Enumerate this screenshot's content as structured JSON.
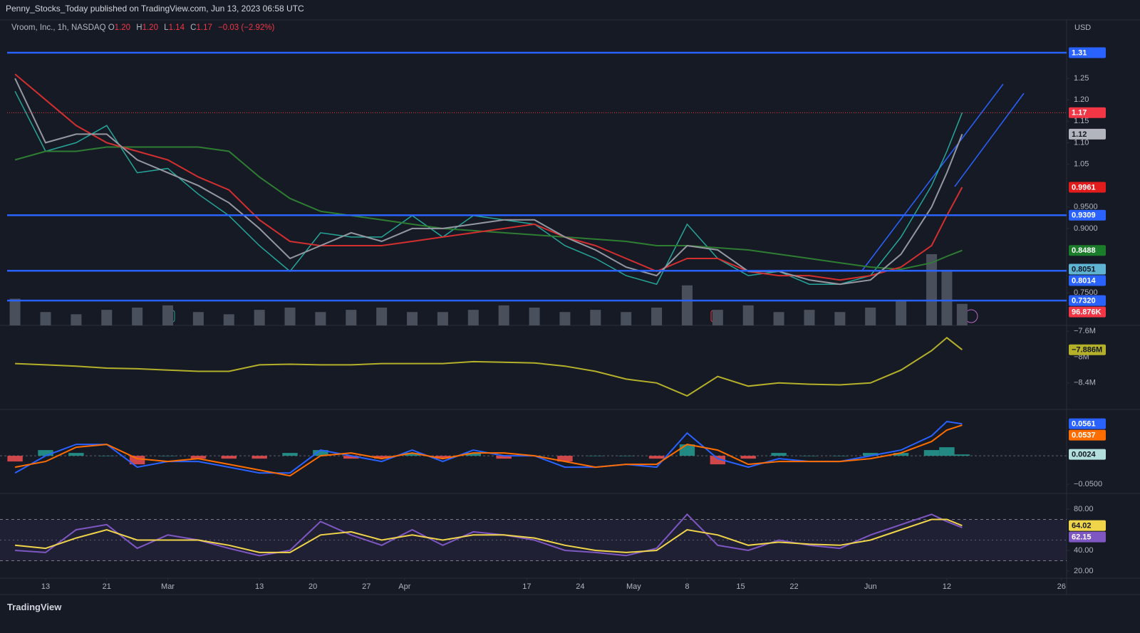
{
  "header": {
    "published": "Penny_Stocks_Today published on TradingView.com, Jun 13, 2023 06:58 UTC"
  },
  "footer": {
    "brand": "TradingView"
  },
  "chart_data": [
    {
      "type": "line",
      "title": "Vroom, Inc., 1h, NASDAQ",
      "ohlc": [
        "O",
        "1.20",
        "H",
        "1.20",
        "L",
        "1.14",
        "C",
        "1.17",
        "−0.03 (−2.92%)"
      ],
      "currency": "USD",
      "x": [
        40,
        44,
        48,
        52,
        56,
        60,
        64,
        68,
        72,
        76,
        80,
        84,
        88,
        92,
        96,
        100,
        104,
        108,
        112,
        116,
        120,
        124,
        128,
        132,
        136,
        140,
        144,
        148,
        152,
        156,
        160,
        162,
        164
      ],
      "xlim": [
        38.03,
        177.68
      ],
      "ylim": [
        0.674,
        1.383
      ],
      "yticks": [
        1.25,
        {
          "value": 1.2,
          "label": "1.20"
        },
        1.15,
        {
          "value": 1.1,
          "label": "1.10"
        },
        1.05,
        {
          "value": 0.95,
          "label": "0.9500"
        },
        {
          "value": 0.9,
          "label": "0.9000"
        },
        {
          "value": 0.75,
          "label": "0.7500"
        }
      ],
      "series": [
        {
          "color": "#26a69a",
          "values": [
            1.22,
            1.08,
            1.1,
            1.14,
            1.03,
            1.04,
            0.98,
            0.93,
            0.86,
            0.8,
            0.89,
            0.88,
            0.88,
            0.93,
            0.88,
            0.93,
            0.92,
            0.91,
            0.86,
            0.83,
            0.79,
            0.77,
            0.91,
            0.83,
            0.79,
            0.8,
            0.77,
            0.77,
            0.79,
            0.88,
            1.0,
            1.08,
            1.17
          ]
        },
        {
          "color": "#2e7d32",
          "values": [
            1.06,
            1.08,
            1.08,
            1.09,
            1.09,
            1.09,
            1.09,
            1.08,
            1.02,
            0.97,
            0.94,
            0.93,
            0.92,
            0.91,
            0.9,
            0.895,
            0.89,
            0.885,
            0.88,
            0.875,
            0.87,
            0.86,
            0.86,
            0.855,
            0.85,
            0.84,
            0.83,
            0.82,
            0.81,
            0.805,
            0.82,
            0.835,
            0.8488
          ]
        },
        {
          "color": "#d32f2f",
          "values": [
            1.26,
            1.2,
            1.14,
            1.1,
            1.08,
            1.06,
            1.02,
            0.99,
            0.92,
            0.87,
            0.86,
            0.86,
            0.86,
            0.87,
            0.88,
            0.89,
            0.9,
            0.91,
            0.88,
            0.86,
            0.83,
            0.8,
            0.83,
            0.83,
            0.8,
            0.79,
            0.79,
            0.78,
            0.79,
            0.81,
            0.86,
            0.93,
            0.9961
          ]
        },
        {
          "color": "#9598a1",
          "values": [
            1.25,
            1.1,
            1.12,
            1.12,
            1.06,
            1.03,
            1.0,
            0.96,
            0.9,
            0.83,
            0.86,
            0.89,
            0.87,
            0.9,
            0.9,
            0.91,
            0.92,
            0.92,
            0.88,
            0.85,
            0.81,
            0.79,
            0.86,
            0.85,
            0.8,
            0.8,
            0.78,
            0.77,
            0.78,
            0.84,
            0.95,
            1.03,
            1.12
          ]
        }
      ],
      "volume": {
        "color": "#4a4f5c",
        "values": [
          120,
          60,
          50,
          70,
          80,
          90,
          60,
          50,
          70,
          80,
          60,
          70,
          80,
          60,
          60,
          70,
          90,
          80,
          60,
          70,
          60,
          80,
          180,
          70,
          90,
          60,
          70,
          60,
          80,
          110,
          320,
          250,
          96.876
        ],
        "marker": {
          "value": 96.876,
          "label": "96.876K",
          "color": "#f23645",
          "text_color": "#ffffff"
        }
      },
      "levels": [
        {
          "value": 1.31,
          "label": "1.31"
        },
        {
          "value": 0.9309,
          "label": "0.9309"
        },
        {
          "value": 0.8014,
          "label": "0.8014"
        },
        {
          "value": 0.732,
          "label": "0.7320"
        }
      ],
      "level_color": "#2962ff",
      "markers": [
        {
          "value": 1.17,
          "label": "1.17",
          "color": "#f23645",
          "text_color": "#ffffff",
          "line": true
        },
        {
          "value": 1.12,
          "label": "1.12",
          "color": "#b2b5be",
          "text_color": "#131722"
        },
        {
          "value": 0.9961,
          "label": "0.9961",
          "color": "#e21c1c",
          "text_color": "#ffffff"
        },
        {
          "value": 0.8488,
          "label": "0.8488",
          "color": "#1b7d2a",
          "text_color": "#ffffff"
        },
        {
          "value": 0.8051,
          "label": "0.8051",
          "color": "#5fb3d3",
          "text_color": "#131722"
        }
      ]
    },
    {
      "type": "line",
      "x": [
        40,
        44,
        48,
        52,
        56,
        60,
        64,
        68,
        72,
        76,
        80,
        84,
        88,
        92,
        96,
        100,
        104,
        108,
        112,
        116,
        120,
        124,
        128,
        132,
        136,
        140,
        144,
        148,
        152,
        156,
        160,
        162,
        164
      ],
      "xlim": [
        38.03,
        177.68
      ],
      "ylim": [
        -8.81,
        -7.52
      ],
      "yticks": [
        {
          "value": -7.6,
          "label": "−7.6M"
        },
        {
          "value": -8,
          "label": "−8M"
        },
        {
          "value": -8.4,
          "label": "−8.4M"
        }
      ],
      "series": [
        {
          "color": "#b5b02a",
          "values": [
            -8.1,
            -8.12,
            -8.14,
            -8.17,
            -8.18,
            -8.2,
            -8.22,
            -8.22,
            -8.12,
            -8.11,
            -8.12,
            -8.12,
            -8.1,
            -8.1,
            -8.1,
            -8.07,
            -8.08,
            -8.09,
            -8.14,
            -8.22,
            -8.34,
            -8.4,
            -8.6,
            -8.3,
            -8.45,
            -8.4,
            -8.42,
            -8.43,
            -8.4,
            -8.2,
            -7.9,
            -7.7,
            -7.886
          ]
        }
      ],
      "markers": [
        {
          "value": -7.886,
          "label": "−7.886M",
          "color": "#b5b02a",
          "text_color": "#131722"
        }
      ]
    },
    {
      "type": "line",
      "x": [
        40,
        44,
        48,
        52,
        56,
        60,
        64,
        68,
        72,
        76,
        80,
        84,
        88,
        92,
        96,
        100,
        104,
        108,
        112,
        116,
        120,
        124,
        128,
        132,
        136,
        140,
        144,
        148,
        152,
        156,
        160,
        162,
        164
      ],
      "xlim": [
        38.03,
        177.68
      ],
      "ylim": [
        -0.066,
        0.08
      ],
      "yticks": [
        {
          "value": -0.05,
          "label": "−0.0500"
        }
      ],
      "zero_line": true,
      "series": [
        {
          "type": "bar",
          "up_color": "#26a69a",
          "down_color": "#ff5252",
          "values": [
            -0.01,
            0.01,
            0.005,
            0.0,
            -0.015,
            0.0,
            -0.005,
            -0.005,
            -0.005,
            0.005,
            0.01,
            -0.005,
            -0.005,
            0.005,
            -0.005,
            0.005,
            -0.005,
            0.0,
            -0.01,
            0.0,
            0.0,
            -0.005,
            0.02,
            -0.015,
            -0.005,
            0.005,
            0.0,
            0.0,
            0.005,
            0.005,
            0.01,
            0.015,
            0.0024
          ]
        },
        {
          "color": "#2962ff",
          "values": [
            -0.03,
            0.0,
            0.02,
            0.02,
            -0.02,
            -0.01,
            -0.01,
            -0.02,
            -0.03,
            -0.03,
            0.01,
            0.0,
            -0.01,
            0.01,
            -0.01,
            0.01,
            0.0,
            0.0,
            -0.02,
            -0.02,
            -0.015,
            -0.02,
            0.04,
            -0.005,
            -0.02,
            -0.005,
            -0.01,
            -0.01,
            0.0,
            0.01,
            0.035,
            0.06,
            0.0561
          ]
        },
        {
          "color": "#ff6d00",
          "values": [
            -0.02,
            -0.01,
            0.015,
            0.02,
            -0.005,
            -0.01,
            -0.005,
            -0.015,
            -0.025,
            -0.035,
            0.0,
            0.005,
            -0.005,
            0.005,
            -0.005,
            0.005,
            0.005,
            0.0,
            -0.01,
            -0.02,
            -0.015,
            -0.015,
            0.02,
            0.01,
            -0.015,
            -0.01,
            -0.01,
            -0.01,
            -0.005,
            0.005,
            0.025,
            0.045,
            0.0537
          ]
        }
      ],
      "markers": [
        {
          "value": 0.0561,
          "label": "0.0561",
          "color": "#2962ff",
          "text_color": "#ffffff"
        },
        {
          "value": 0.0537,
          "label": "0.0537",
          "color": "#ff6d00",
          "text_color": "#ffffff"
        },
        {
          "value": 0.0024,
          "label": "0.0024",
          "color": "#b2dfdb",
          "text_color": "#131722"
        }
      ]
    },
    {
      "type": "line",
      "x": [
        40,
        44,
        48,
        52,
        56,
        60,
        64,
        68,
        72,
        76,
        80,
        84,
        88,
        92,
        96,
        100,
        104,
        108,
        112,
        116,
        120,
        124,
        128,
        132,
        136,
        140,
        144,
        148,
        152,
        156,
        160,
        162,
        164
      ],
      "xlim": [
        38.03,
        177.68
      ],
      "ylim": [
        13.1,
        94.5
      ],
      "yticks": [
        {
          "value": 80,
          "label": "80.00"
        },
        {
          "value": 40,
          "label": "40.00"
        },
        {
          "value": 20,
          "label": "20.00"
        }
      ],
      "bands": [
        30,
        70
      ],
      "midline": 50,
      "series": [
        {
          "color": "#7e57c2",
          "values": [
            40,
            38,
            60,
            65,
            42,
            55,
            50,
            42,
            35,
            40,
            68,
            55,
            45,
            60,
            45,
            58,
            55,
            50,
            40,
            38,
            35,
            42,
            75,
            45,
            40,
            50,
            45,
            42,
            55,
            65,
            75,
            68,
            62.15
          ]
        },
        {
          "color": "#f0d54a",
          "values": [
            45,
            42,
            52,
            60,
            50,
            50,
            50,
            45,
            38,
            38,
            55,
            58,
            50,
            55,
            50,
            55,
            55,
            52,
            45,
            40,
            38,
            40,
            60,
            55,
            45,
            48,
            46,
            45,
            50,
            60,
            70,
            70,
            64.02
          ]
        }
      ],
      "markers": [
        {
          "value": 64.02,
          "label": "64.02",
          "color": "#f0d54a",
          "text_color": "#131722"
        },
        {
          "value": 62.15,
          "label": "62.15",
          "color": "#7e57c2",
          "text_color": "#ffffff"
        }
      ],
      "xticks": [
        {
          "value": 44,
          "label": "13"
        },
        {
          "value": 52,
          "label": "21"
        },
        {
          "value": 60,
          "label": "Mar"
        },
        {
          "value": 72,
          "label": "13"
        },
        {
          "value": 79,
          "label": "20"
        },
        {
          "value": 86,
          "label": "27"
        },
        {
          "value": 91,
          "label": "Apr"
        },
        {
          "value": 107,
          "label": "17"
        },
        {
          "value": 114,
          "label": "24"
        },
        {
          "value": 121,
          "label": "May"
        },
        {
          "value": 128,
          "label": "8"
        },
        {
          "value": 135,
          "label": "15"
        },
        {
          "value": 142,
          "label": "22"
        },
        {
          "value": 152,
          "label": "Jun"
        },
        {
          "value": 162,
          "label": "12"
        },
        {
          "value": 177,
          "label": "26"
        }
      ]
    }
  ]
}
